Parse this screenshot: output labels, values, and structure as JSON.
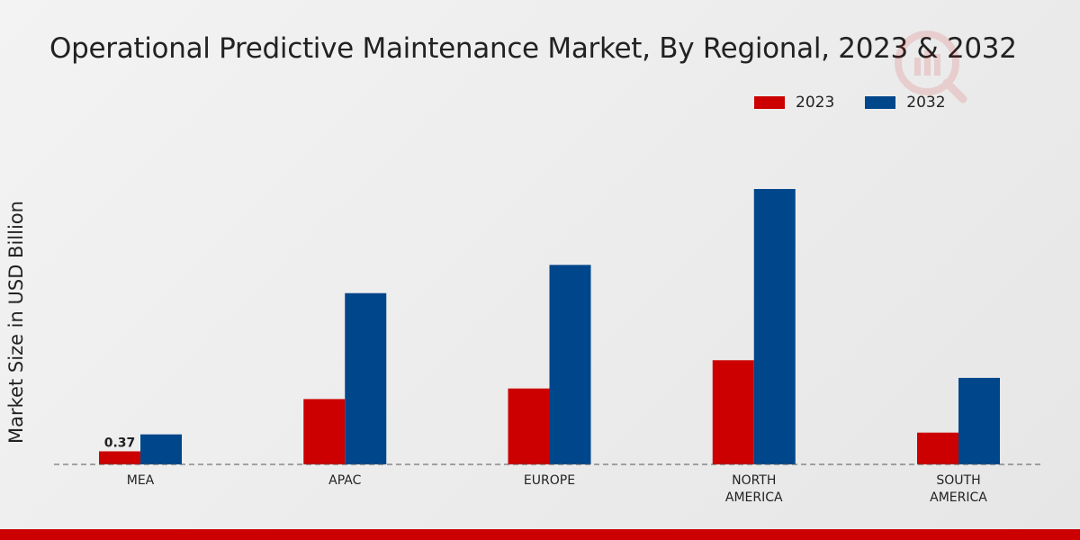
{
  "chart_data": {
    "type": "bar",
    "title": "Operational Predictive Maintenance Market, By Regional, 2023 & 2032",
    "xlabel": "",
    "ylabel": "Market Size in USD Billion",
    "categories": [
      [
        "MEA"
      ],
      [
        "APAC"
      ],
      [
        "EUROPE"
      ],
      [
        "NORTH",
        "AMERICA"
      ],
      [
        "SOUTH",
        "AMERICA"
      ]
    ],
    "series": [
      {
        "name": "2023",
        "color": "#cc0000",
        "values": [
          0.37,
          1.85,
          2.15,
          2.95,
          0.9
        ]
      },
      {
        "name": "2032",
        "color": "#00468b",
        "values": [
          0.85,
          4.85,
          5.65,
          7.8,
          2.45
        ]
      }
    ],
    "data_labels": [
      {
        "series": 0,
        "index": 0,
        "text": "0.37"
      }
    ],
    "ylim": [
      0,
      10
    ],
    "legend_position": "top-right"
  }
}
